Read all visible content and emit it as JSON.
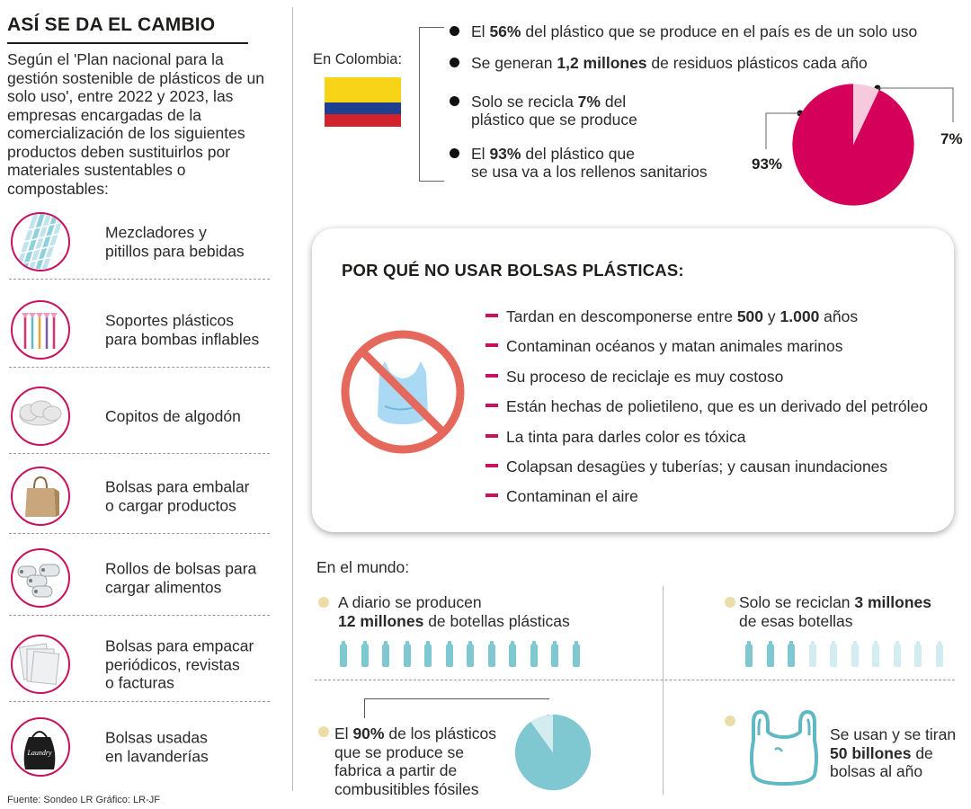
{
  "left": {
    "title": "ASÍ SE DA EL CAMBIO",
    "intro": "Según el 'Plan nacional para la gestión sostenible de plásticos de un solo uso', entre 2022 y 2023, las empresas encargadas de la comercialización de los siguientes productos deben sustituirlos por materiales sustentables o compostables:",
    "items": [
      {
        "icon": "straws-icon",
        "line1": "Mezcladores y",
        "line2": "pitillos para bebidas",
        "line3": ""
      },
      {
        "icon": "balloon-sticks-icon",
        "line1": "Soportes plásticos",
        "line2": "para bombas inflables",
        "line3": ""
      },
      {
        "icon": "cotton-swab-icon",
        "line1": "Copitos de algodón",
        "line2": "",
        "line3": ""
      },
      {
        "icon": "paper-bag-icon",
        "line1": "Bolsas para embalar",
        "line2": "o cargar productos",
        "line3": ""
      },
      {
        "icon": "bag-rolls-icon",
        "line1": "Rollos de bolsas para",
        "line2": "cargar alimentos",
        "line3": ""
      },
      {
        "icon": "plastic-sleeves-icon",
        "line1": "Bolsas para empacar",
        "line2": "periódicos, revistas",
        "line3": "o facturas"
      },
      {
        "icon": "laundry-bag-icon",
        "line1": "Bolsas usadas",
        "line2": "en lavanderías",
        "line3": ""
      }
    ],
    "source": "Fuente: Sondeo LR    Gráfico: LR-JF",
    "laundry_text": "Laundry"
  },
  "colombia": {
    "label": "En Colombia:",
    "facts": [
      {
        "pre": "El ",
        "bold": "56%",
        "post": " del plástico que se produce en el país es de un solo uso",
        "post2": ""
      },
      {
        "pre": "Se generan ",
        "bold": "1,2 millones",
        "post": " de residuos plásticos cada año",
        "post2": ""
      },
      {
        "pre": "Solo se recicla ",
        "bold": "7%",
        "post": " del",
        "post2": "plástico que se produce"
      },
      {
        "pre": "El ",
        "bold": "93%",
        "post": " del plástico que",
        "post2": "se usa va a los rellenos sanitarios"
      }
    ],
    "pie": {
      "large_label": "93%",
      "small_label": "7%",
      "large_value": 93,
      "small_value": 7,
      "large_color": "#d4005a",
      "small_color": "#f6c9dc"
    }
  },
  "bags": {
    "title": "POR QUÉ NO USAR BOLSAS PLÁSTICAS:",
    "reasons": [
      {
        "pre": "Tardan en descomponerse entre ",
        "b1": "500",
        "mid": " y ",
        "b2": "1.000",
        "post": " años"
      },
      {
        "pre": "Contaminan océanos y matan animales marinos",
        "b1": "",
        "mid": "",
        "b2": "",
        "post": ""
      },
      {
        "pre": "Su proceso de reciclaje es muy costoso",
        "b1": "",
        "mid": "",
        "b2": "",
        "post": ""
      },
      {
        "pre": "Están hechas de polietileno, que es un derivado del petróleo",
        "b1": "",
        "mid": "",
        "b2": "",
        "post": ""
      },
      {
        "pre": "La tinta para darles color es tóxica",
        "b1": "",
        "mid": "",
        "b2": "",
        "post": ""
      },
      {
        "pre": "Colapsan desagües y tuberías; y causan inundaciones",
        "b1": "",
        "mid": "",
        "b2": "",
        "post": ""
      },
      {
        "pre": "Contaminan el aire",
        "b1": "",
        "mid": "",
        "b2": "",
        "post": ""
      }
    ],
    "accent_color": "#c9125f"
  },
  "world": {
    "label": "En el mundo:",
    "daily": {
      "line1": "A diario se producen",
      "bold": "12 millones",
      "line2": " de botellas plásticas",
      "bottles_full": 12,
      "bottles_total": 12
    },
    "recycled": {
      "pre": "Solo se reciclan ",
      "bold": "3 millones",
      "line2": "de esas botellas",
      "bottles_full": 3,
      "bottles_total": 10
    },
    "fossil": {
      "pre": "El ",
      "bold": "90%",
      "post": " de los plásticos",
      "line2": "que se produce se",
      "line3": "fabrica a partir de",
      "line4": "combusitibles fósiles",
      "pie_value": 90,
      "color": "#7fc8d2",
      "light_color": "#d3ecef"
    },
    "bags": {
      "line1": "Se usan y se tiran",
      "bold": "50 billones",
      "post": " de",
      "line3": "bolsas al año"
    }
  }
}
